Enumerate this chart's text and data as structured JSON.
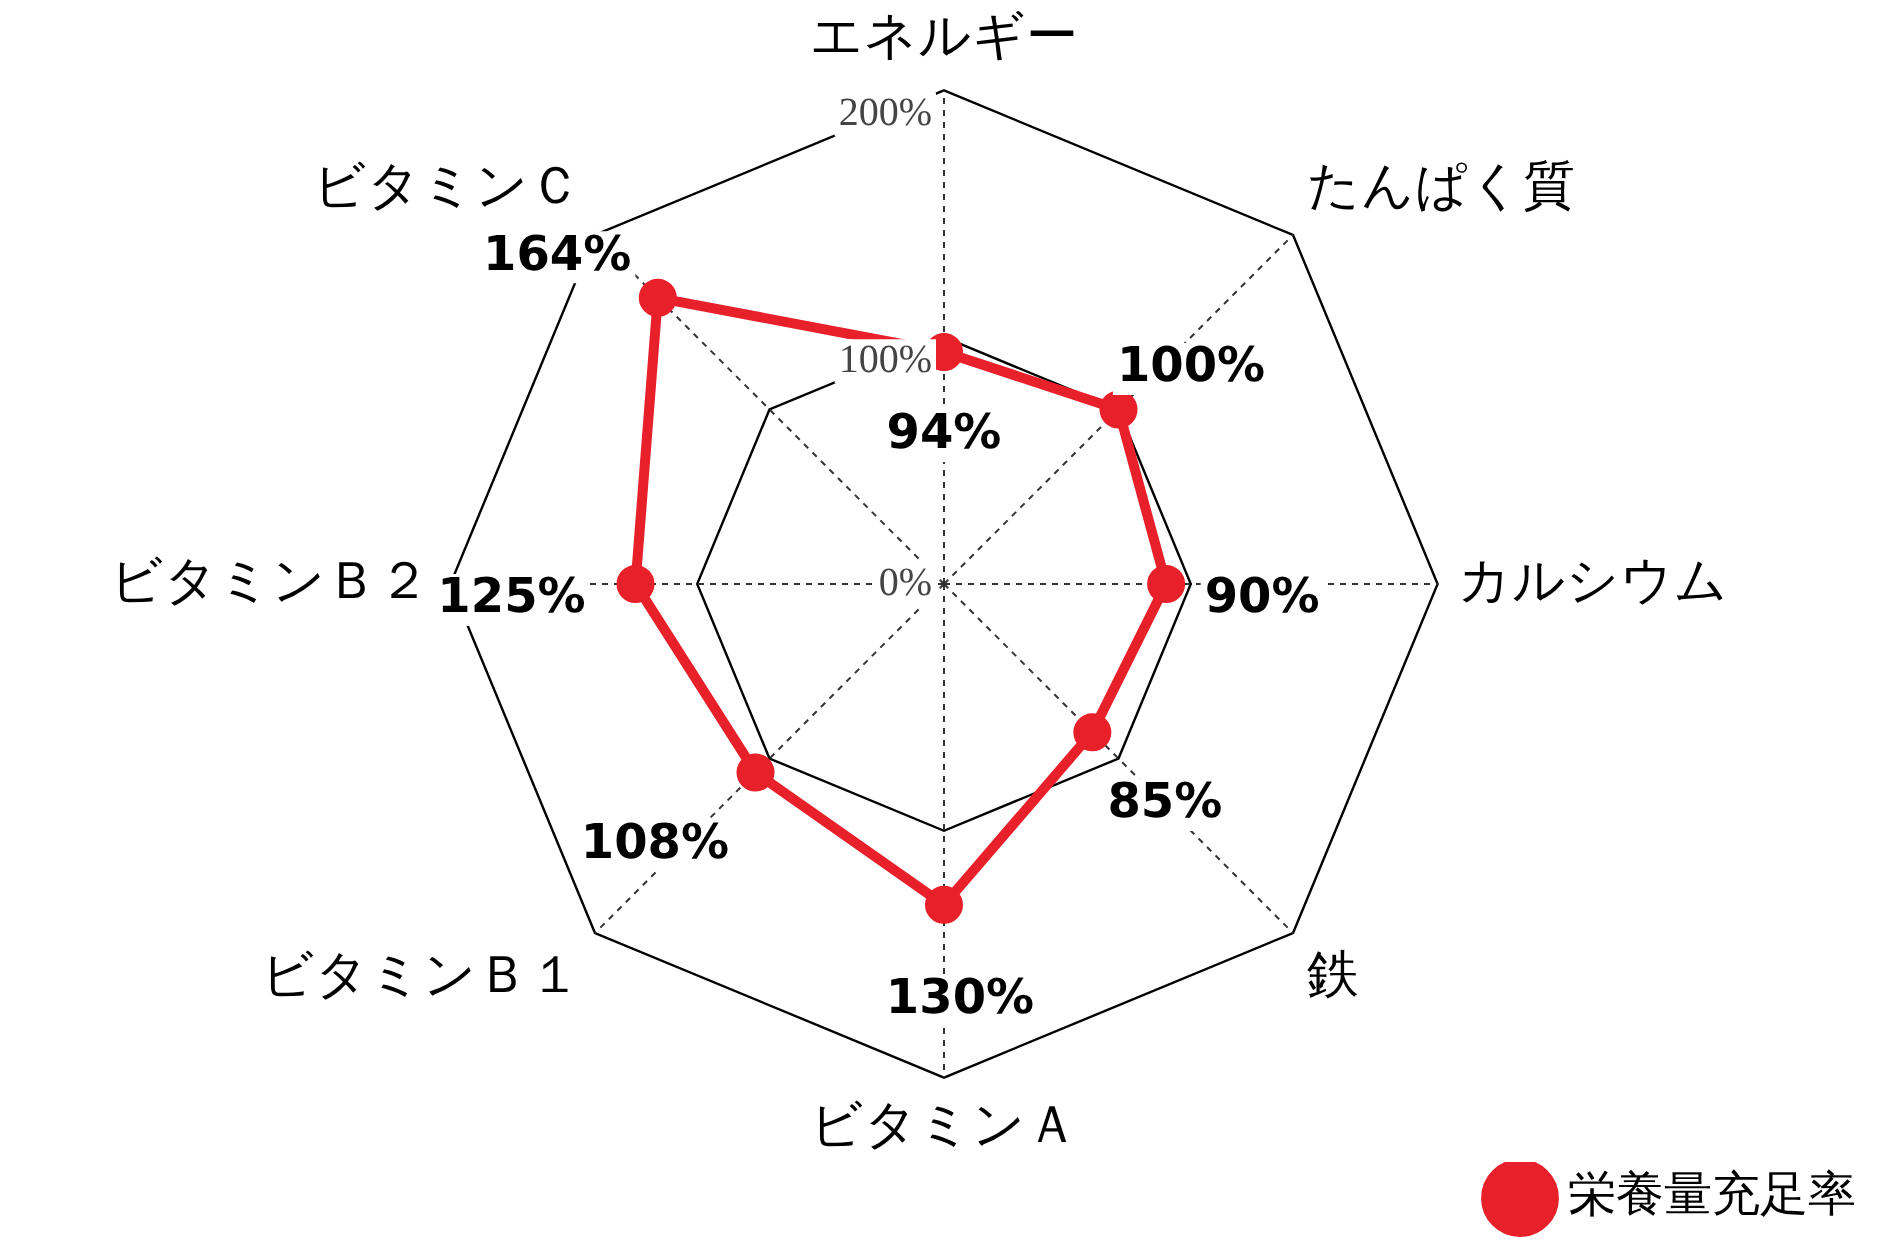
{
  "chart_data": {
    "type": "radar",
    "categories": [
      "エネルギー",
      "たんぱく質",
      "カルシウム",
      "鉄",
      "ビタミンＡ",
      "ビタミンＢ１",
      "ビタミンＢ２",
      "ビタミンＣ"
    ],
    "series": [
      {
        "name": "栄養量充足率",
        "color": "#e8202a",
        "values": [
          94,
          100,
          90,
          85,
          130,
          108,
          125,
          164
        ],
        "value_labels": [
          "94%",
          "100%",
          "90%",
          "85%",
          "130%",
          "108%",
          "125%",
          "164%"
        ]
      }
    ],
    "ylim": [
      0,
      200
    ],
    "yticks": [
      {
        "value": 0,
        "label": "0%"
      },
      {
        "value": 100,
        "label": "100%"
      },
      {
        "value": 200,
        "label": "200%"
      }
    ],
    "grid": true,
    "legend": "bottom right",
    "marker": "circle"
  }
}
